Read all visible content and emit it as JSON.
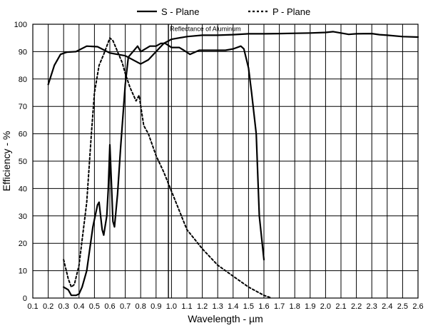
{
  "chart_data": {
    "type": "line",
    "xlabel": "Wavelength - µm",
    "ylabel": "Efficiency - %",
    "xlim": [
      0.1,
      2.6
    ],
    "ylim": [
      0,
      100
    ],
    "x_ticks": [
      "0.1",
      "0.2",
      "0.3",
      "0.4",
      "0.5",
      "0.6",
      "0.7",
      "0.8",
      "0.9",
      "1.0",
      "1.1",
      "1.2",
      "1.3",
      "1.4",
      "1.5",
      "1.6",
      "1.7",
      "1.8",
      "1.9",
      "2.0",
      "2.1",
      "2.2",
      "2.3",
      "2.4",
      "2.5",
      "2.6"
    ],
    "y_ticks": [
      "0",
      "10",
      "20",
      "30",
      "40",
      "50",
      "60",
      "70",
      "80",
      "90",
      "100"
    ],
    "grid": true,
    "legend_placement": "top-center",
    "annotations": [
      {
        "text": "Reflectance  of  Aluminum",
        "x": 1.22,
        "y": 97.5
      }
    ],
    "reference_lines": [
      {
        "axis": "x",
        "value": 0.98
      }
    ],
    "series": [
      {
        "name": "S - Plane",
        "style": "solid",
        "points": [
          [
            0.2,
            78
          ],
          [
            0.24,
            85
          ],
          [
            0.28,
            89
          ],
          [
            0.32,
            89.8
          ],
          [
            0.38,
            90
          ],
          [
            0.45,
            92
          ],
          [
            0.52,
            91.8
          ],
          [
            0.6,
            89.5
          ],
          [
            0.7,
            88.5
          ],
          [
            0.8,
            85.5
          ],
          [
            0.85,
            87
          ],
          [
            0.9,
            90
          ],
          [
            0.95,
            93
          ],
          [
            1.0,
            94.5
          ],
          [
            1.1,
            95.5
          ],
          [
            1.2,
            96
          ],
          [
            1.3,
            96
          ],
          [
            1.4,
            96.2
          ],
          [
            1.5,
            96.5
          ],
          [
            1.6,
            96.5
          ],
          [
            1.7,
            96.6
          ],
          [
            1.8,
            96.7
          ],
          [
            1.9,
            96.8
          ],
          [
            2.0,
            97
          ],
          [
            2.05,
            97.3
          ],
          [
            2.1,
            96.8
          ],
          [
            2.15,
            96.3
          ],
          [
            2.2,
            96.5
          ],
          [
            2.3,
            96.6
          ],
          [
            2.35,
            96.2
          ],
          [
            2.4,
            96
          ],
          [
            2.5,
            95.5
          ],
          [
            2.6,
            95.3
          ]
        ]
      },
      {
        "name": "P - Plane",
        "style": "dashed",
        "points": [
          [
            0.3,
            14
          ],
          [
            0.33,
            7
          ],
          [
            0.35,
            4
          ],
          [
            0.37,
            5
          ],
          [
            0.4,
            12
          ],
          [
            0.45,
            35
          ],
          [
            0.48,
            60
          ],
          [
            0.5,
            75
          ],
          [
            0.53,
            85
          ],
          [
            0.56,
            89
          ],
          [
            0.6,
            95
          ],
          [
            0.62,
            94
          ],
          [
            0.65,
            90
          ],
          [
            0.68,
            86
          ],
          [
            0.7,
            82
          ],
          [
            0.73,
            77
          ],
          [
            0.77,
            72
          ],
          [
            0.79,
            74
          ],
          [
            0.82,
            63
          ],
          [
            0.85,
            60
          ],
          [
            0.9,
            52
          ],
          [
            0.95,
            46
          ],
          [
            1.0,
            39
          ],
          [
            1.05,
            32
          ],
          [
            1.1,
            25
          ],
          [
            1.2,
            18
          ],
          [
            1.3,
            12
          ],
          [
            1.4,
            8
          ],
          [
            1.5,
            4
          ],
          [
            1.6,
            1
          ],
          [
            1.65,
            0
          ]
        ]
      },
      {
        "name": "",
        "style": "solid",
        "points": [
          [
            0.3,
            4
          ],
          [
            0.33,
            3
          ],
          [
            0.35,
            1
          ],
          [
            0.38,
            1
          ],
          [
            0.4,
            1.5
          ],
          [
            0.42,
            4
          ],
          [
            0.45,
            10
          ],
          [
            0.47,
            18
          ],
          [
            0.49,
            26
          ],
          [
            0.52,
            34
          ],
          [
            0.53,
            35
          ],
          [
            0.55,
            25
          ],
          [
            0.56,
            23
          ],
          [
            0.58,
            30
          ],
          [
            0.59,
            40
          ],
          [
            0.6,
            56
          ],
          [
            0.61,
            42
          ],
          [
            0.62,
            28
          ],
          [
            0.63,
            26
          ],
          [
            0.65,
            38
          ],
          [
            0.67,
            55
          ],
          [
            0.7,
            78
          ],
          [
            0.72,
            88
          ],
          [
            0.75,
            90
          ],
          [
            0.78,
            92
          ],
          [
            0.8,
            90
          ],
          [
            0.83,
            91
          ],
          [
            0.86,
            92
          ],
          [
            0.9,
            92
          ],
          [
            0.93,
            93
          ],
          [
            0.96,
            93
          ],
          [
            1.0,
            91.5
          ],
          [
            1.05,
            91.5
          ],
          [
            1.08,
            90.5
          ],
          [
            1.12,
            89
          ],
          [
            1.18,
            90.5
          ],
          [
            1.25,
            90.5
          ],
          [
            1.35,
            90.5
          ],
          [
            1.4,
            91
          ],
          [
            1.45,
            92
          ],
          [
            1.47,
            91
          ],
          [
            1.5,
            84
          ],
          [
            1.52,
            75
          ],
          [
            1.55,
            60
          ],
          [
            1.57,
            30
          ],
          [
            1.6,
            14
          ]
        ]
      }
    ]
  }
}
